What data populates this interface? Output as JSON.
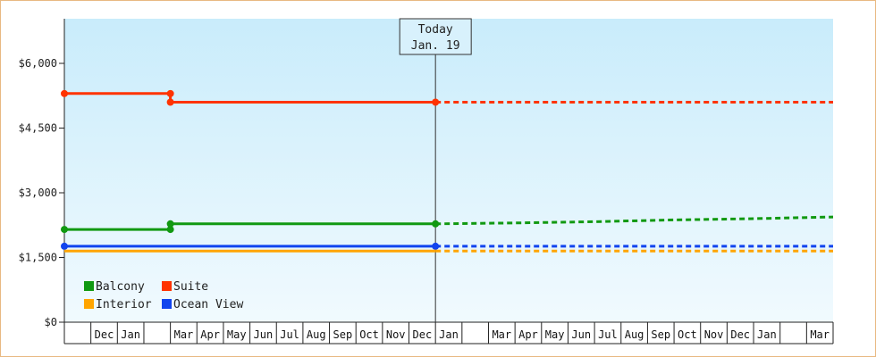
{
  "chart_data": {
    "type": "line",
    "x_unit": "month",
    "yticks": [
      "$0",
      "$1,500",
      "$3,000",
      "$4,500",
      "$6,000"
    ],
    "ylim": [
      0,
      6000
    ],
    "month_labels": [
      "",
      "Dec",
      "Jan",
      "",
      "Mar",
      "Apr",
      "May",
      "Jun",
      "Jul",
      "Aug",
      "Sep",
      "Oct",
      "Nov",
      "Dec",
      "Jan",
      "",
      "Mar",
      "Apr",
      "May",
      "Jun",
      "Jul",
      "Aug",
      "Sep",
      "Oct",
      "Nov",
      "Dec",
      "Jan",
      "",
      "Mar"
    ],
    "today": {
      "title": "Today",
      "date": "Jan. 19",
      "month_index": 14
    },
    "legend": [
      {
        "name": "Balcony",
        "color": "#119911"
      },
      {
        "name": "Suite",
        "color": "#ff3300"
      },
      {
        "name": "Interior",
        "color": "#ffa500"
      },
      {
        "name": "Ocean View",
        "color": "#1144ee"
      }
    ],
    "series": [
      {
        "name": "Suite",
        "color": "#ff3300",
        "actual": [
          [
            0,
            5300
          ],
          [
            4,
            5300
          ],
          [
            4,
            5100
          ],
          [
            14,
            5100
          ]
        ],
        "projected": [
          [
            14,
            5100
          ],
          [
            29,
            5100
          ]
        ],
        "markers": [
          [
            0,
            5300
          ],
          [
            4,
            5300
          ],
          [
            4,
            5100
          ],
          [
            14,
            5100
          ]
        ]
      },
      {
        "name": "Balcony",
        "color": "#119911",
        "actual": [
          [
            0,
            2150
          ],
          [
            4,
            2150
          ],
          [
            4,
            2280
          ],
          [
            14,
            2280
          ]
        ],
        "projected": [
          [
            14,
            2280
          ],
          [
            17,
            2300
          ],
          [
            20,
            2330
          ],
          [
            23,
            2370
          ],
          [
            26,
            2400
          ],
          [
            29,
            2440
          ]
        ],
        "markers": [
          [
            0,
            2150
          ],
          [
            4,
            2150
          ],
          [
            4,
            2280
          ],
          [
            14,
            2280
          ]
        ]
      },
      {
        "name": "Ocean View",
        "color": "#1144ee",
        "actual": [
          [
            0,
            1760
          ],
          [
            14,
            1760
          ]
        ],
        "projected": [
          [
            14,
            1760
          ],
          [
            29,
            1760
          ]
        ],
        "markers": [
          [
            0,
            1760
          ],
          [
            14,
            1760
          ]
        ]
      },
      {
        "name": "Interior",
        "color": "#ffa500",
        "actual": [
          [
            0,
            1650
          ],
          [
            14,
            1650
          ]
        ],
        "projected": [
          [
            14,
            1650
          ],
          [
            29,
            1650
          ]
        ],
        "markers": []
      }
    ]
  }
}
